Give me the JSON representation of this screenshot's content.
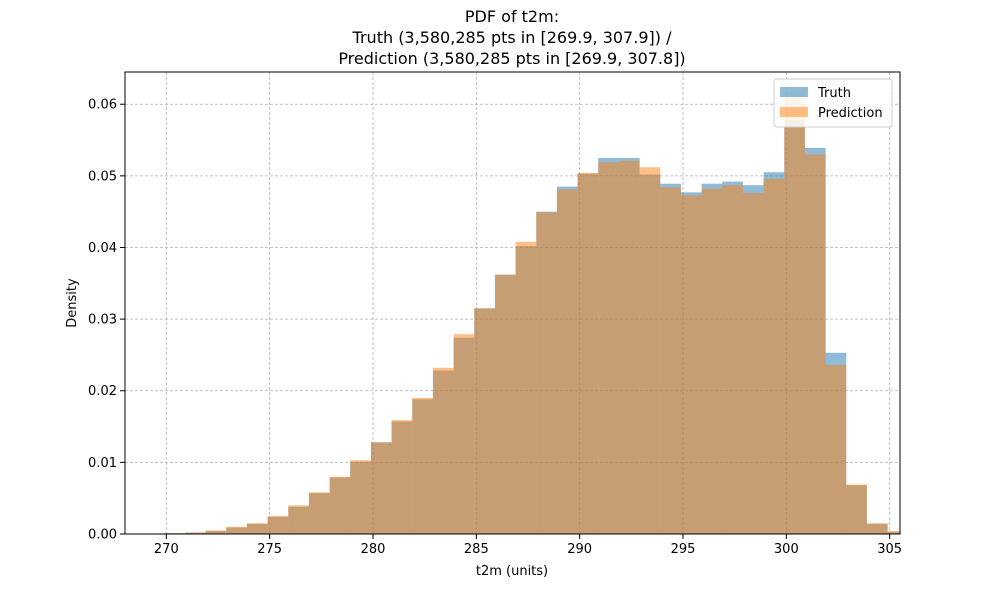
{
  "chart_data": {
    "type": "bar",
    "title_lines": [
      "PDF of t2m:",
      "Truth (3,580,285 pts in [269.9, 307.9]) /",
      "Prediction (3,580,285 pts in [269.9, 307.8])"
    ],
    "xlabel": "t2m (units)",
    "ylabel": "Density",
    "xlim": [
      268.0,
      305.5
    ],
    "ylim": [
      0,
      0.0645
    ],
    "x_ticks": [
      270,
      275,
      280,
      285,
      290,
      295,
      300,
      305
    ],
    "x_tick_labels": [
      "270",
      "275",
      "280",
      "285",
      "290",
      "295",
      "300",
      "305"
    ],
    "y_ticks": [
      0,
      0.01,
      0.02,
      0.03,
      0.04,
      0.05,
      0.06
    ],
    "y_tick_labels": [
      "0.00",
      "0.01",
      "0.02",
      "0.03",
      "0.04",
      "0.05",
      "0.06"
    ],
    "grid": true,
    "legend_position": "top-right",
    "bin_edges": [
      269.9,
      270.9,
      271.9,
      272.9,
      273.9,
      274.9,
      275.9,
      276.9,
      277.9,
      278.9,
      279.9,
      280.9,
      281.9,
      282.9,
      283.9,
      284.9,
      285.9,
      286.9,
      287.9,
      288.9,
      289.9,
      290.9,
      291.9,
      292.9,
      293.9,
      294.9,
      295.9,
      296.9,
      297.9,
      298.9,
      299.9,
      300.9,
      301.9,
      302.9,
      303.9,
      304.9,
      305.9,
      306.9,
      307.9
    ],
    "series": [
      {
        "name": "Truth",
        "color": "#1f77b4",
        "opacity": 0.5,
        "values": [
          0.0001,
          0.0002,
          0.0004,
          0.0009,
          0.0014,
          0.0024,
          0.0038,
          0.0057,
          0.0079,
          0.0101,
          0.0128,
          0.0157,
          0.0188,
          0.0228,
          0.0274,
          0.0315,
          0.0362,
          0.0402,
          0.045,
          0.0485,
          0.0503,
          0.0525,
          0.0525,
          0.0502,
          0.0489,
          0.0477,
          0.0489,
          0.0492,
          0.0487,
          0.0505,
          0.0578,
          0.0539,
          0.0253,
          0.0068,
          0.0014,
          0.0003,
          0.0001,
          0.0
        ]
      },
      {
        "name": "Prediction",
        "color": "#ff7f0e",
        "opacity": 0.5,
        "values": [
          0.0001,
          0.0002,
          0.0005,
          0.001,
          0.0015,
          0.0025,
          0.004,
          0.0058,
          0.008,
          0.0103,
          0.0128,
          0.0159,
          0.019,
          0.0232,
          0.0279,
          0.0315,
          0.0362,
          0.0408,
          0.0449,
          0.0481,
          0.0504,
          0.0519,
          0.0521,
          0.0512,
          0.0484,
          0.0473,
          0.0482,
          0.0487,
          0.0476,
          0.0496,
          0.0618,
          0.053,
          0.0236,
          0.0069,
          0.0015,
          0.0004,
          0.0001,
          0.0
        ]
      }
    ]
  }
}
